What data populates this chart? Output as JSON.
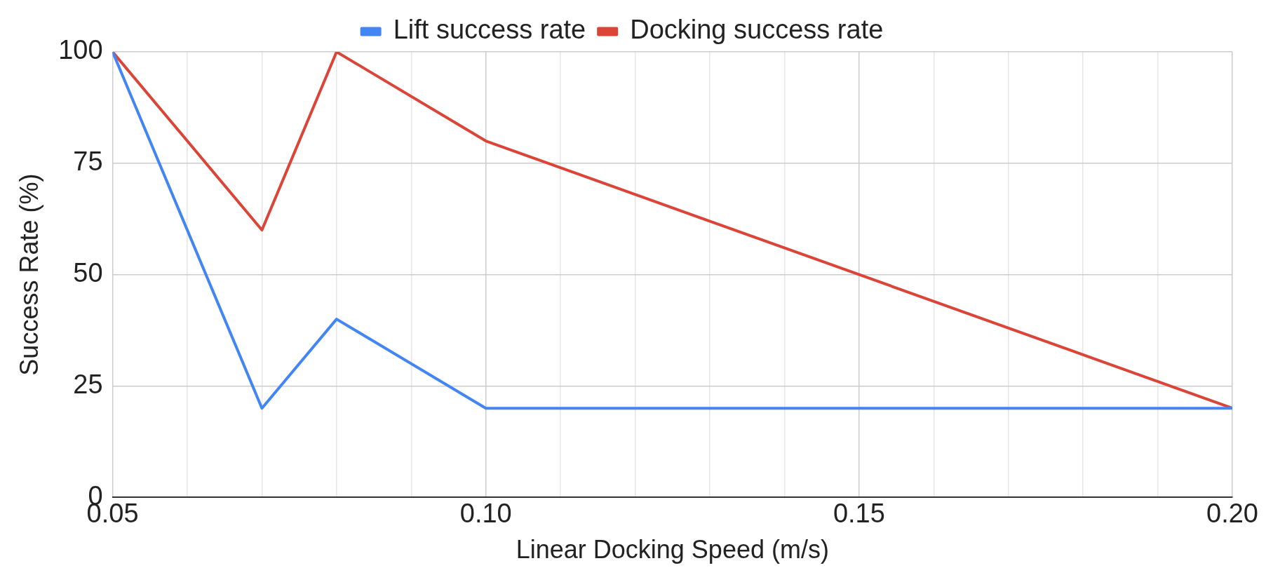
{
  "chart_data": {
    "type": "line",
    "xlabel": "Linear Docking Speed (m/s)",
    "ylabel": "Success Rate (%)",
    "x": [
      0.05,
      0.07,
      0.08,
      0.1,
      0.2
    ],
    "series": [
      {
        "name": "Lift success rate",
        "color": "#4285f4",
        "values": [
          100,
          20,
          40,
          20,
          20
        ]
      },
      {
        "name": "Docking success rate",
        "color": "#db4437",
        "values": [
          100,
          60,
          100,
          80,
          20
        ]
      }
    ],
    "xlim": [
      0.05,
      0.2
    ],
    "xticks": [
      {
        "value": 0.05,
        "label": "0.05"
      },
      {
        "value": 0.06,
        "label": null
      },
      {
        "value": 0.07,
        "label": null
      },
      {
        "value": 0.08,
        "label": null
      },
      {
        "value": 0.09,
        "label": null
      },
      {
        "value": 0.1,
        "label": "0.10"
      },
      {
        "value": 0.11,
        "label": null
      },
      {
        "value": 0.12,
        "label": null
      },
      {
        "value": 0.13,
        "label": null
      },
      {
        "value": 0.14,
        "label": null
      },
      {
        "value": 0.15,
        "label": "0.15"
      },
      {
        "value": 0.16,
        "label": null
      },
      {
        "value": 0.17,
        "label": null
      },
      {
        "value": 0.18,
        "label": null
      },
      {
        "value": 0.19,
        "label": null
      },
      {
        "value": 0.2,
        "label": "0.20"
      }
    ],
    "ylim": [
      0,
      100
    ],
    "yticks": [
      0,
      25,
      50,
      75,
      100
    ],
    "grid": true,
    "legend": "top",
    "marker": "none",
    "line_style": "solid"
  }
}
